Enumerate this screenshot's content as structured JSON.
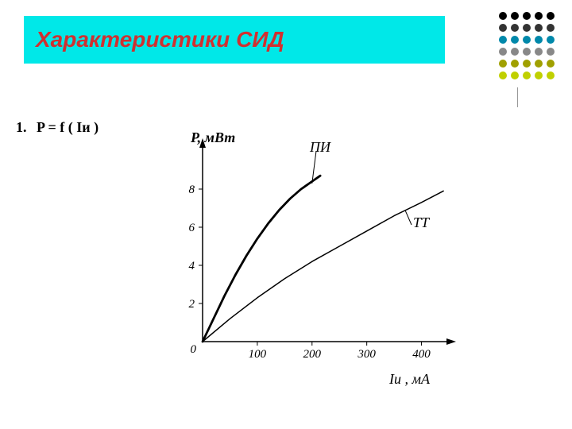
{
  "title": {
    "text": "Характеристики СИД",
    "color": "#d03030",
    "background": "#00e8e8",
    "fontsize": 28
  },
  "decoration": {
    "dot_colors": [
      "#000000",
      "#000000",
      "#000000",
      "#000000",
      "#000000",
      "#333333",
      "#333333",
      "#333333",
      "#333333",
      "#333333",
      "#0088aa",
      "#0088aa",
      "#0088aa",
      "#0088aa",
      "#0088aa",
      "#888888",
      "#888888",
      "#888888",
      "#888888",
      "#888888",
      "#a0a000",
      "#a0a000",
      "#a0a000",
      "#a0a000",
      "#a0a000",
      "#c0d000",
      "#c0d000",
      "#c0d000",
      "#c0d000",
      "#c0d000"
    ]
  },
  "equation": {
    "number": "1.",
    "text": "P = f ( Iи )"
  },
  "chart": {
    "type": "line",
    "ylabel": "P, мВт",
    "xlabel": "Iи , мА",
    "origin_label": "0",
    "x_ticks": [
      "100",
      "200",
      "300",
      "400"
    ],
    "y_ticks": [
      "2",
      "4",
      "6",
      "8"
    ],
    "xlim": [
      0,
      450
    ],
    "ylim": [
      0,
      10
    ],
    "axis_color": "#000000",
    "background_color": "#ffffff",
    "series": [
      {
        "name": "ПИ",
        "label": "ПИ",
        "color": "#000000",
        "line_width": 2.8,
        "points": [
          [
            0,
            0
          ],
          [
            20,
            1.2
          ],
          [
            40,
            2.4
          ],
          [
            60,
            3.5
          ],
          [
            80,
            4.5
          ],
          [
            100,
            5.4
          ],
          [
            120,
            6.2
          ],
          [
            140,
            6.9
          ],
          [
            160,
            7.5
          ],
          [
            180,
            8.0
          ],
          [
            200,
            8.4
          ],
          [
            215,
            8.7
          ]
        ]
      },
      {
        "name": "ТТ",
        "label": "ТТ",
        "color": "#000000",
        "line_width": 1.5,
        "points": [
          [
            0,
            0
          ],
          [
            50,
            1.2
          ],
          [
            100,
            2.3
          ],
          [
            150,
            3.3
          ],
          [
            200,
            4.2
          ],
          [
            250,
            5.0
          ],
          [
            300,
            5.8
          ],
          [
            350,
            6.6
          ],
          [
            400,
            7.3
          ],
          [
            440,
            7.9
          ]
        ]
      }
    ]
  }
}
